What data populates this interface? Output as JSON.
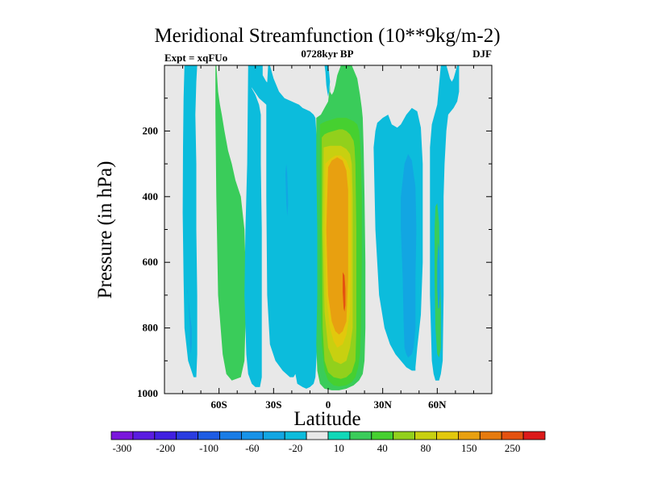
{
  "chart_data": {
    "type": "heatmap",
    "title": "Meridional Streamfunction (10**9kg/m-2)",
    "subtitle_left": "Expt = xqFUo",
    "subtitle_center": "0728kyr BP",
    "subtitle_right": "DJF",
    "xlabel": "Latitude",
    "ylabel": "Pressure (in hPa)",
    "xlim": [
      -90,
      90
    ],
    "ylim": [
      1000,
      0
    ],
    "x_ticks": [
      {
        "value": -60,
        "label": "60S"
      },
      {
        "value": -30,
        "label": "30S"
      },
      {
        "value": 0,
        "label": "0"
      },
      {
        "value": 30,
        "label": "30N"
      },
      {
        "value": 60,
        "label": "60N"
      }
    ],
    "y_ticks": [
      {
        "value": 200,
        "label": "200"
      },
      {
        "value": 400,
        "label": "400"
      },
      {
        "value": 600,
        "label": "600"
      },
      {
        "value": 800,
        "label": "800"
      },
      {
        "value": 1000,
        "label": "1000"
      }
    ],
    "background_color": "#e8e8e8",
    "colorbar": {
      "levels": [
        -300,
        -250,
        -200,
        -150,
        -100,
        -80,
        -60,
        -40,
        -20,
        -10,
        10,
        20,
        40,
        60,
        80,
        100,
        150,
        200,
        250,
        300
      ],
      "labels": [
        {
          "level": -300,
          "label": "-300"
        },
        {
          "level": -200,
          "label": "-200"
        },
        {
          "level": -100,
          "label": "-100"
        },
        {
          "level": -60,
          "label": "-60"
        },
        {
          "level": -20,
          "label": "-20"
        },
        {
          "level": 10,
          "label": "10"
        },
        {
          "level": 40,
          "label": "40"
        },
        {
          "level": 80,
          "label": "80"
        },
        {
          "level": 150,
          "label": "150"
        },
        {
          "level": 250,
          "label": "250"
        }
      ],
      "colors": [
        "#7a16dc",
        "#5a1ce0",
        "#4020e0",
        "#2a3ce0",
        "#1e5ce4",
        "#1a7ce6",
        "#1892e8",
        "#12a6e2",
        "#0cbcdc",
        "#e8e8e8",
        "#10d8b8",
        "#3acc5a",
        "#46d030",
        "#92d01c",
        "#c8d010",
        "#e2c80c",
        "#e8a010",
        "#e67a0e",
        "#e45210",
        "#dc1a1a"
      ]
    },
    "regions": [
      {
        "level": -20,
        "x": [
          -79,
          -79.5,
          -79.8,
          -80,
          -79.5,
          -79,
          -77,
          -74,
          -72.5,
          -72,
          -72,
          -72.5,
          -72.5,
          -73,
          -72.5,
          -72
        ],
        "p": [
          0,
          100,
          250,
          450,
          650,
          800,
          900,
          950,
          950,
          880,
          700,
          500,
          300,
          150,
          50,
          0
        ]
      },
      {
        "level": -40,
        "x": [
          -77,
          -76.5,
          -76,
          -76,
          -75.5,
          -75,
          -75,
          -76,
          -76.5,
          -77,
          -77.5,
          -77.5
        ],
        "p": [
          700,
          750,
          800,
          850,
          880,
          850,
          800,
          760,
          730,
          700,
          680,
          690
        ]
      },
      {
        "level": 20,
        "x": [
          -62,
          -62,
          -61.5,
          -60.5,
          -58,
          -56,
          -53,
          -48,
          -46,
          -45,
          -46,
          -48,
          -51,
          -53,
          -55,
          -57,
          -58.5,
          -59.5,
          -60.5,
          -61.5
        ],
        "p": [
          0,
          150,
          400,
          700,
          880,
          940,
          960,
          950,
          900,
          700,
          500,
          400,
          350,
          300,
          260,
          200,
          150,
          120,
          80,
          0
        ]
      },
      {
        "level": -20,
        "x": [
          -44,
          -44.5,
          -45.5,
          -46,
          -45,
          -44,
          -42,
          -40,
          -37.5,
          -36.5,
          -36.5,
          -36.5,
          -36.5,
          -37,
          -37,
          -38,
          -40,
          -42,
          -43
        ],
        "p": [
          0,
          300,
          500,
          700,
          880,
          940,
          970,
          980,
          980,
          950,
          850,
          700,
          500,
          300,
          150,
          120,
          90,
          70,
          40
        ]
      },
      {
        "level": -20,
        "x": [
          -44,
          -43,
          -38,
          -34,
          -32,
          -30,
          -29,
          -30,
          -31,
          -34,
          -36,
          -36,
          -36,
          -37,
          -40,
          -42
        ],
        "p": [
          0,
          60,
          100,
          120,
          140,
          150,
          120,
          100,
          60,
          50,
          30,
          10,
          0,
          0,
          0,
          0
        ]
      },
      {
        "level": -20,
        "x": [
          -33,
          -34,
          -34,
          -33.5,
          -32,
          -29,
          -25,
          -21,
          -19,
          -18,
          -17,
          -14,
          -12,
          -10,
          -8,
          -7,
          -6,
          -6,
          -6,
          -6,
          -7,
          -8,
          -10,
          -14,
          -16,
          -20,
          -24,
          -27,
          -30,
          -32
        ],
        "p": [
          0,
          100,
          400,
          700,
          850,
          900,
          930,
          950,
          950,
          940,
          970,
          980,
          985,
          980,
          970,
          950,
          850,
          650,
          450,
          250,
          160,
          150,
          140,
          130,
          120,
          110,
          100,
          80,
          40,
          0
        ]
      },
      {
        "level": -40,
        "x": [
          -23,
          -22.5,
          -22,
          -22.5,
          -23,
          -23.5
        ],
        "p": [
          300,
          330,
          420,
          460,
          420,
          330
        ]
      },
      {
        "level": -20,
        "x": [
          -2,
          -1.5,
          -1,
          -0.5,
          0,
          0.5,
          1,
          0.5,
          0,
          -1
        ],
        "p": [
          0,
          20,
          60,
          80,
          95,
          80,
          50,
          20,
          0,
          0
        ]
      },
      {
        "level": 20,
        "x": [
          -6.5,
          -6.5,
          -6,
          -6,
          -6.5,
          -6,
          -4.5,
          -2,
          2,
          6,
          10,
          14,
          17,
          19,
          20,
          20.5,
          20.5,
          20,
          19.5,
          19,
          18.5,
          17.5,
          16,
          13,
          11,
          9,
          7,
          5,
          4,
          3,
          2,
          1,
          1,
          0,
          -2,
          -4
        ],
        "p": [
          160,
          300,
          500,
          700,
          850,
          930,
          970,
          985,
          990,
          990,
          985,
          975,
          960,
          940,
          900,
          800,
          600,
          400,
          250,
          160,
          130,
          90,
          40,
          0,
          0,
          0,
          0,
          30,
          60,
          80,
          90,
          80,
          60,
          110,
          130,
          150
        ]
      },
      {
        "level": 40,
        "x": [
          -4.5,
          -4.5,
          -4.5,
          -4.5,
          -3.5,
          -2,
          0,
          3,
          6,
          10,
          13,
          15,
          16.5,
          17.5,
          18,
          18.5,
          18.5,
          18,
          17.5,
          17,
          16,
          14,
          12,
          10,
          8,
          5,
          2,
          -1,
          -3
        ],
        "p": [
          180,
          300,
          500,
          700,
          850,
          930,
          960,
          975,
          978,
          975,
          965,
          950,
          920,
          880,
          800,
          600,
          400,
          280,
          230,
          200,
          180,
          170,
          165,
          160,
          160,
          160,
          165,
          170,
          175
        ]
      },
      {
        "level": 60,
        "x": [
          -3.5,
          -3.5,
          -3,
          -2,
          0,
          3,
          7,
          10,
          13,
          15,
          15.5,
          15.5,
          15,
          14.5,
          14,
          12,
          10,
          8,
          6,
          3,
          0,
          -2
        ],
        "p": [
          220,
          500,
          800,
          900,
          935,
          950,
          955,
          950,
          935,
          900,
          800,
          500,
          300,
          250,
          230,
          210,
          200,
          195,
          195,
          200,
          205,
          210
        ]
      },
      {
        "level": 80,
        "x": [
          -2.5,
          -3,
          -2,
          0,
          3,
          7,
          10,
          12,
          13.5,
          13.5,
          13.5,
          13,
          12,
          10,
          7,
          4,
          1,
          -1
        ],
        "p": [
          250,
          500,
          750,
          860,
          900,
          910,
          900,
          860,
          800,
          600,
          400,
          300,
          270,
          255,
          245,
          245,
          245,
          248
        ]
      },
      {
        "level": 100,
        "x": [
          -1.5,
          -2,
          -1,
          1,
          3,
          5,
          8,
          10,
          12,
          12.5,
          12.5,
          12,
          10,
          7,
          4,
          1
        ],
        "p": [
          300,
          500,
          700,
          800,
          840,
          860,
          850,
          820,
          750,
          600,
          400,
          320,
          290,
          275,
          275,
          285
        ]
      },
      {
        "level": 150,
        "x": [
          0,
          -1,
          0,
          2,
          4,
          6,
          8,
          10,
          11,
          11,
          11,
          10,
          8,
          5,
          2
        ],
        "p": [
          310,
          500,
          700,
          780,
          810,
          820,
          810,
          780,
          650,
          500,
          380,
          320,
          290,
          280,
          290
        ]
      },
      {
        "level": 250,
        "x": [
          8,
          8,
          8.5,
          9,
          9.5,
          9.5,
          9
        ],
        "p": [
          630,
          690,
          740,
          750,
          730,
          680,
          640
        ]
      },
      {
        "level": -20,
        "x": [
          25,
          26,
          27,
          28,
          30,
          33,
          35,
          38,
          40,
          43,
          46,
          49,
          51,
          52,
          52,
          51,
          49,
          48,
          48,
          46,
          43,
          40,
          37,
          34,
          31,
          28,
          26
        ],
        "p": [
          250,
          200,
          175,
          170,
          160,
          150,
          180,
          190,
          180,
          150,
          130,
          140,
          190,
          300,
          600,
          760,
          860,
          920,
          930,
          930,
          920,
          900,
          880,
          850,
          800,
          700,
          500
        ]
      },
      {
        "level": -40,
        "x": [
          40,
          40,
          41,
          41.5,
          42,
          43,
          44,
          46,
          47,
          48,
          48,
          48.5,
          48,
          47,
          46,
          44,
          42
        ],
        "p": [
          400,
          500,
          650,
          780,
          860,
          880,
          890,
          880,
          860,
          800,
          650,
          500,
          370,
          330,
          290,
          270,
          300
        ]
      },
      {
        "level": -20,
        "x": [
          62,
          60,
          57,
          56,
          56,
          56,
          57,
          58,
          59,
          61,
          62,
          63,
          63.5,
          63.5,
          64,
          65,
          66,
          69,
          71,
          72,
          72,
          71,
          70,
          69,
          68,
          67,
          66,
          65,
          64
        ],
        "p": [
          0,
          120,
          180,
          250,
          400,
          700,
          900,
          940,
          960,
          960,
          940,
          900,
          700,
          400,
          300,
          200,
          150,
          130,
          110,
          80,
          0,
          0,
          20,
          40,
          50,
          40,
          20,
          0,
          0
        ]
      },
      {
        "level": 20,
        "x": [
          59,
          58.5,
          58.5,
          59,
          60,
          61,
          62,
          62,
          61.5,
          61,
          60
        ],
        "p": [
          430,
          500,
          650,
          800,
          880,
          890,
          860,
          750,
          620,
          480,
          420
        ]
      },
      {
        "level": -40,
        "x": [
          60.5,
          60,
          60,
          60.5,
          61,
          61.5,
          61.5,
          61
        ],
        "p": [
          540,
          600,
          680,
          740,
          740,
          700,
          620,
          560
        ]
      }
    ]
  }
}
